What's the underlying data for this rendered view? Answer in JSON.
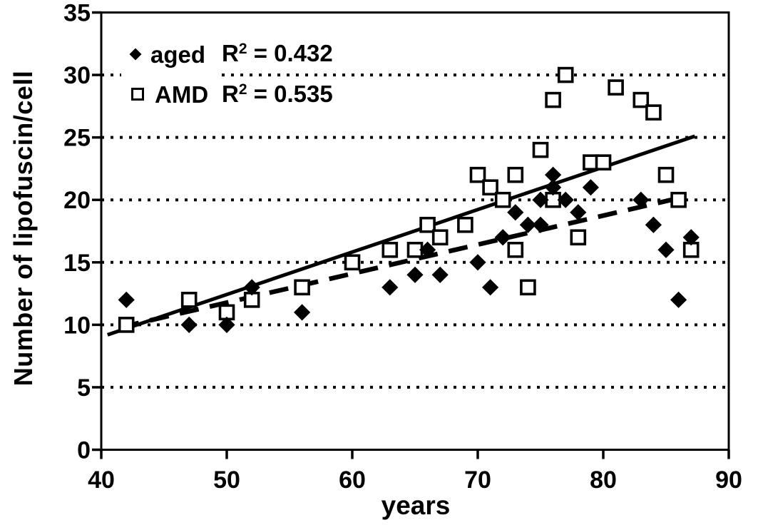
{
  "figure": {
    "background_color": "#ffffff",
    "ink_color": "#000000"
  },
  "chart_data": {
    "type": "scatter",
    "title": "",
    "xlabel": "years",
    "ylabel": "Number of lipofuscin/cell",
    "xlim": [
      40,
      90
    ],
    "ylim": [
      0,
      35
    ],
    "xticks": [
      40,
      50,
      60,
      70,
      80,
      90
    ],
    "yticks": [
      0,
      5,
      10,
      15,
      20,
      25,
      30,
      35
    ],
    "grid": "horizontal dotted gridlines",
    "gridline_values": [
      5,
      10,
      15,
      20,
      25,
      30
    ],
    "legend_position": "top-left inside plot",
    "legend": {
      "rows": [
        {
          "label": "aged",
          "marker": "filled-diamond",
          "r2_base": "R",
          "r2_sup": "2",
          "r2_rest": " = 0.432"
        },
        {
          "label": "AMD",
          "marker": "open-square",
          "r2_base": "R",
          "r2_sup": "2",
          "r2_rest": " = 0.535"
        }
      ]
    },
    "series": [
      {
        "name": "aged",
        "marker": "filled-diamond",
        "color": "#000000",
        "r_squared": 0.432,
        "trendline": {
          "style": "dashed",
          "x1": 41.5,
          "y1": 9.8,
          "x2": 86.7,
          "y2": 20.3
        },
        "points": [
          [
            42,
            12
          ],
          [
            47,
            10
          ],
          [
            50,
            10
          ],
          [
            52,
            13
          ],
          [
            56,
            11
          ],
          [
            63,
            13
          ],
          [
            65,
            14
          ],
          [
            66,
            16
          ],
          [
            67,
            14
          ],
          [
            70,
            15
          ],
          [
            71,
            13
          ],
          [
            72,
            17
          ],
          [
            73,
            19
          ],
          [
            74,
            18
          ],
          [
            75,
            18
          ],
          [
            75,
            20
          ],
          [
            76,
            21
          ],
          [
            76,
            22
          ],
          [
            77,
            20
          ],
          [
            78,
            19
          ],
          [
            79,
            21
          ],
          [
            83,
            20
          ],
          [
            84,
            18
          ],
          [
            85,
            16
          ],
          [
            86,
            12
          ],
          [
            87,
            17
          ]
        ]
      },
      {
        "name": "AMD",
        "marker": "open-square",
        "color": "#000000",
        "r_squared": 0.535,
        "trendline": {
          "style": "solid",
          "x1": 40.5,
          "y1": 9.2,
          "x2": 87.3,
          "y2": 25.1
        },
        "points": [
          [
            42,
            10
          ],
          [
            47,
            12
          ],
          [
            50,
            11
          ],
          [
            52,
            12
          ],
          [
            56,
            13
          ],
          [
            60,
            15
          ],
          [
            63,
            16
          ],
          [
            65,
            16
          ],
          [
            66,
            18
          ],
          [
            67,
            17
          ],
          [
            69,
            18
          ],
          [
            70,
            22
          ],
          [
            71,
            21
          ],
          [
            72,
            20
          ],
          [
            73,
            16
          ],
          [
            73,
            22
          ],
          [
            74,
            13
          ],
          [
            75,
            24
          ],
          [
            76,
            20
          ],
          [
            76,
            28
          ],
          [
            77,
            30
          ],
          [
            78,
            17
          ],
          [
            79,
            23
          ],
          [
            80,
            23
          ],
          [
            81,
            29
          ],
          [
            83,
            28
          ],
          [
            84,
            27
          ],
          [
            85,
            22
          ],
          [
            86,
            20
          ],
          [
            87,
            16
          ]
        ]
      }
    ]
  }
}
